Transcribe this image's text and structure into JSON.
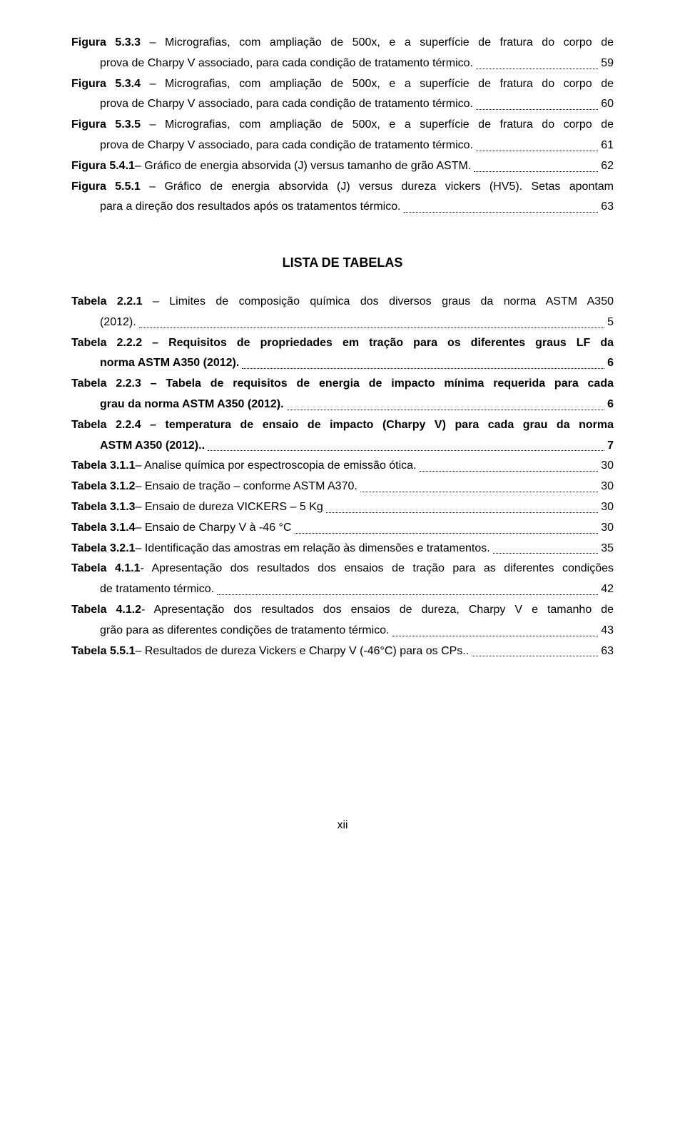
{
  "figures": [
    {
      "id": "fig533",
      "label": "Figura 5.3.3",
      "text1": " – Micrografias, com ampliação de 500x, e a superfície de fratura do corpo de",
      "text2": "prova de Charpy V associado, para cada condição de tratamento térmico. ",
      "page": " 59",
      "bold": false
    },
    {
      "id": "fig534",
      "label": "Figura 5.3.4",
      "text1": " – Micrografias, com ampliação de 500x, e a superfície de fratura do corpo de",
      "text2": "prova de Charpy V associado, para cada condição de tratamento térmico. ",
      "page": " 60",
      "bold": false
    },
    {
      "id": "fig535",
      "label": "Figura 5.3.5",
      "text1": " – Micrografias, com ampliação de 500x, e a superfície de fratura do corpo de",
      "text2": "prova de Charpy V associado, para cada condição de tratamento térmico. ",
      "page": " 61",
      "bold": false
    },
    {
      "id": "fig541",
      "label": "Figura 5.4.1",
      "text1": " – Gráfico de energia absorvida (J) versus tamanho de grão ASTM.",
      "page": " 62",
      "bold": false,
      "single": true
    },
    {
      "id": "fig551",
      "label": "Figura 5.5.1",
      "text1": " – Gráfico de energia absorvida (J) versus dureza vickers (HV5). Setas apontam",
      "text2": "para a direção dos resultados após os tratamentos térmico. ",
      "page": " 63",
      "bold": false
    }
  ],
  "section_title": "LISTA DE TABELAS",
  "tables": [
    {
      "id": "t221",
      "label": "Tabela 2.2.1",
      "text1": " – Limites de composição química dos diversos graus da norma ASTM A350",
      "text2": "(2012). ",
      "page": " 5",
      "bold": false
    },
    {
      "id": "t222",
      "label": "Tabela 2.2.2",
      "text1": " – Requisitos de propriedades em tração para os diferentes graus LF da",
      "text2": "norma ASTM A350 (2012). ",
      "page": " 6",
      "bold": true
    },
    {
      "id": "t223",
      "label": "Tabela 2.2.3",
      "text1": " – Tabela de requisitos de energia de impacto mínima requerida para cada",
      "text2": "grau da norma ASTM A350 (2012). ",
      "page": " 6",
      "bold": true
    },
    {
      "id": "t224",
      "label": "Tabela 2.2.4",
      "text1": " – temperatura de ensaio de impacto (Charpy V) para cada grau da norma",
      "text2": "ASTM A350 (2012).. ",
      "page": " 7",
      "bold": true
    },
    {
      "id": "t311",
      "label": "Tabela 3.1.1",
      "text1": " – Analise química por espectroscopia de emissão ótica. ",
      "page": " 30",
      "bold": false,
      "single": true
    },
    {
      "id": "t312",
      "label": "Tabela 3.1.2",
      "text1": " – Ensaio de tração – conforme ASTM A370. ",
      "page": " 30",
      "bold": false,
      "single": true
    },
    {
      "id": "t313",
      "label": "Tabela 3.1.3",
      "text1": " – Ensaio de dureza VICKERS – 5 Kg ",
      "page": " 30",
      "bold": false,
      "single": true
    },
    {
      "id": "t314",
      "label": "Tabela 3.1.4",
      "text1": " – Ensaio de Charpy V à -46 °C ",
      "page": " 30",
      "bold": false,
      "single": true
    },
    {
      "id": "t321",
      "label": "Tabela 3.2.1",
      "text1": " – Identificação das amostras em relação às dimensões e tratamentos. ",
      "page": " 35",
      "bold": false,
      "single": true
    },
    {
      "id": "t411",
      "label": "Tabela 4.1.1",
      "text1": "- Apresentação dos resultados dos ensaios de tração para as diferentes condições",
      "text2": "de tratamento térmico. ",
      "page": " 42",
      "bold": false
    },
    {
      "id": "t412",
      "label": "Tabela 4.1.2",
      "text1": "- Apresentação dos resultados dos ensaios de dureza, Charpy V e tamanho de",
      "text2": "grão para as diferentes condições de tratamento térmico. ",
      "page": " 43",
      "bold": false
    },
    {
      "id": "t551",
      "label": "Tabela 5.5.1",
      "text1": " – Resultados de dureza Vickers e Charpy V (-46°C) para os CPs.. ",
      "page": " 63",
      "bold": false,
      "single": true
    }
  ],
  "footer": "xii",
  "colors": {
    "bg": "#ffffff",
    "text": "#000000",
    "dots": "#000000"
  }
}
